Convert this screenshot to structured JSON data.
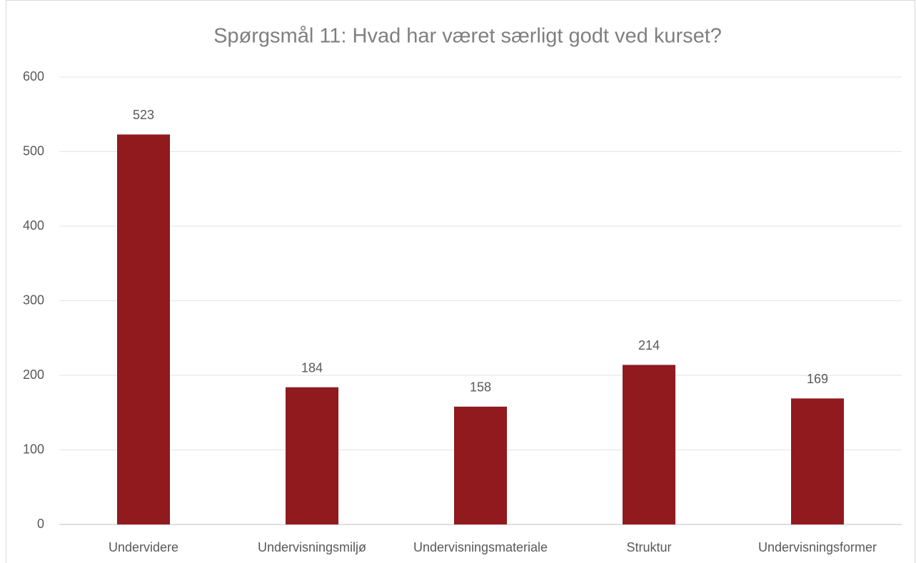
{
  "chart_data": {
    "type": "bar",
    "title": "Spørgsmål 11: Hvad har været særligt godt ved kurset?",
    "categories": [
      "Undervidere",
      "Undervisningsmiljø",
      "Undervisningsmateriale",
      "Struktur",
      "Undervisningsformer"
    ],
    "values": [
      523,
      184,
      158,
      214,
      169
    ],
    "color": "#901a1e",
    "ylim": [
      0,
      600
    ],
    "yticks": [
      0,
      100,
      200,
      300,
      400,
      500,
      600
    ],
    "grid": true
  }
}
